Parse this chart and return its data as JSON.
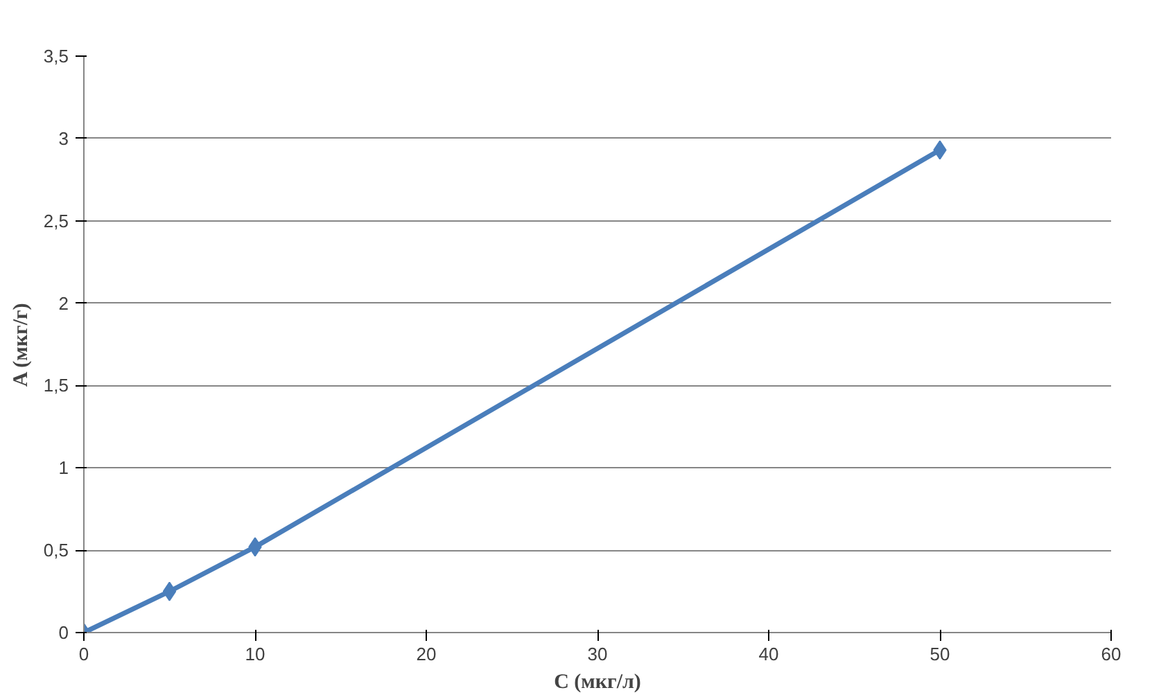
{
  "chart_data": {
    "type": "line",
    "xlabel": "C (мкг/л)",
    "ylabel": "A (мкг/г)",
    "x": [
      0,
      5,
      10,
      50
    ],
    "series": [
      {
        "color": "#4a7ebb",
        "values": [
          0,
          0.25,
          0.52,
          2.93
        ]
      }
    ],
    "xlim": [
      0,
      60
    ],
    "xticks": [
      0,
      10,
      20,
      30,
      40,
      50,
      60
    ],
    "ylim": [
      0,
      3.5
    ],
    "yticks": [
      0,
      {
        "value": 0.5,
        "label": "0,5"
      },
      1,
      {
        "value": 1.5,
        "label": "1,5"
      },
      2,
      {
        "value": 2.5,
        "label": "2,5"
      },
      3,
      {
        "value": 3.5,
        "label": "3,5"
      }
    ],
    "grid": "y",
    "marker": "diamond",
    "line_style": "solid"
  }
}
